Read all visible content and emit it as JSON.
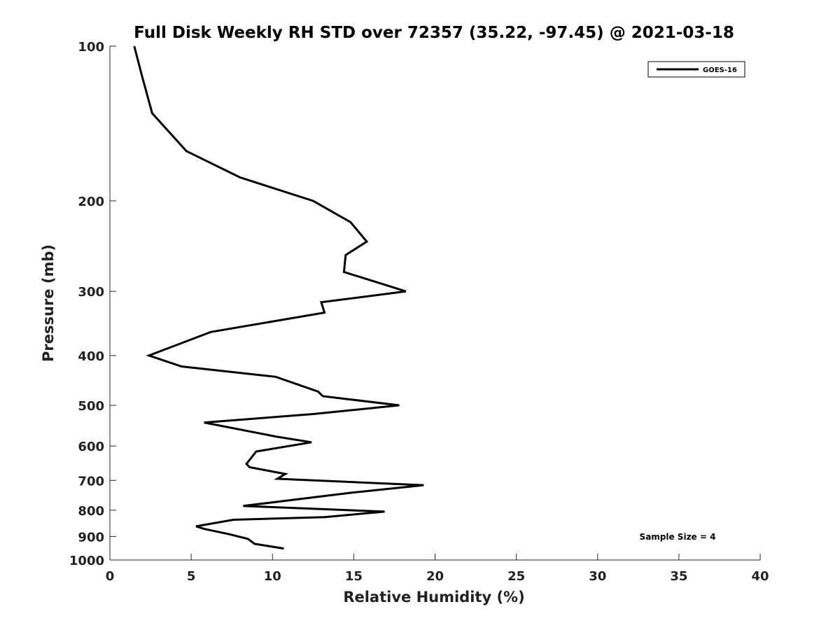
{
  "chart_data": {
    "type": "line",
    "title": "Full Disk Weekly RH STD over 72357 (35.22, -97.45) @ 2021-03-18",
    "xlabel": "Relative Humidity (%)",
    "ylabel": "Pressure (mb)",
    "xlim": [
      0,
      40
    ],
    "ylim": [
      1000,
      100
    ],
    "y_scale": "log",
    "x_ticks": [
      0,
      5,
      10,
      15,
      20,
      25,
      30,
      35,
      40
    ],
    "y_ticks": [
      100,
      200,
      300,
      400,
      500,
      600,
      700,
      800,
      900,
      1000
    ],
    "grid": false,
    "legend": {
      "position": "top-right",
      "entries": [
        "GOES-16"
      ]
    },
    "annotation": "Sample Size = 4",
    "series": [
      {
        "name": "GOES-16",
        "color": "#000000",
        "x": [
          1.5,
          2.0,
          2.6,
          4.7,
          8.0,
          12.5,
          14.8,
          15.8,
          14.5,
          14.4,
          18.2,
          13.0,
          13.2,
          6.2,
          2.4,
          4.4,
          10.2,
          12.8,
          13.1,
          17.8,
          12.5,
          5.8,
          10.2,
          12.4,
          9.0,
          8.4,
          8.6,
          10.8,
          10.3,
          19.3,
          14.8,
          8.2,
          16.9,
          13.2,
          7.6,
          5.3,
          5.8,
          7.3,
          8.5,
          8.9,
          10.7
        ],
        "y": [
          100,
          115,
          135,
          160,
          180,
          200,
          220,
          240,
          255,
          275,
          300,
          315,
          330,
          360,
          400,
          420,
          440,
          470,
          480,
          500,
          520,
          540,
          575,
          590,
          615,
          650,
          660,
          680,
          695,
          715,
          740,
          785,
          805,
          825,
          835,
          860,
          870,
          890,
          910,
          930,
          950
        ]
      }
    ]
  }
}
